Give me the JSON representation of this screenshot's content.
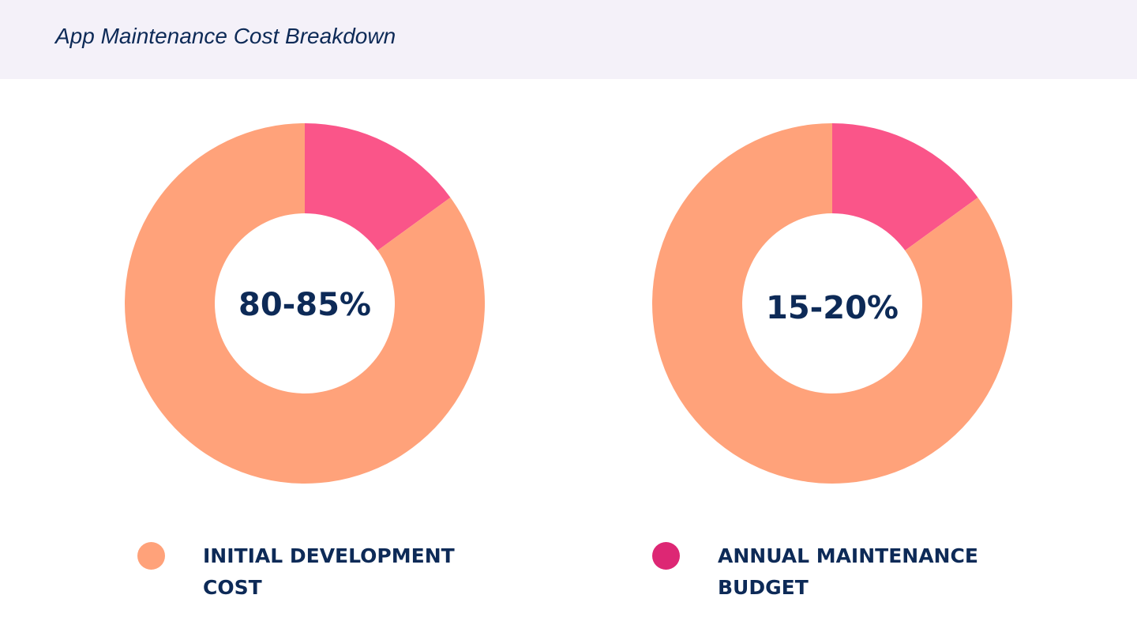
{
  "header": {
    "title": "App Maintenance Cost Breakdown"
  },
  "chart_data": [
    {
      "type": "pie",
      "variant": "donut",
      "center_label": "80-85%",
      "slices": [
        {
          "category": "Annual Maintenance Budget",
          "value": 15,
          "color": "#FA5589"
        },
        {
          "category": "Initial Development Cost",
          "value": 85,
          "color": "#FFA27A"
        }
      ]
    },
    {
      "type": "pie",
      "variant": "donut",
      "center_label": "15-20%",
      "slices": [
        {
          "category": "Annual Maintenance Budget",
          "value": 15,
          "color": "#FA5589"
        },
        {
          "category": "Initial Development Cost",
          "value": 85,
          "color": "#FFA27A"
        }
      ]
    }
  ],
  "legend": [
    {
      "label": "INITIAL DEVELOPMENT COST",
      "color": "#FFA27A"
    },
    {
      "label": "ANNUAL MAINTENANCE BUDGET",
      "color": "#DD2774"
    }
  ]
}
